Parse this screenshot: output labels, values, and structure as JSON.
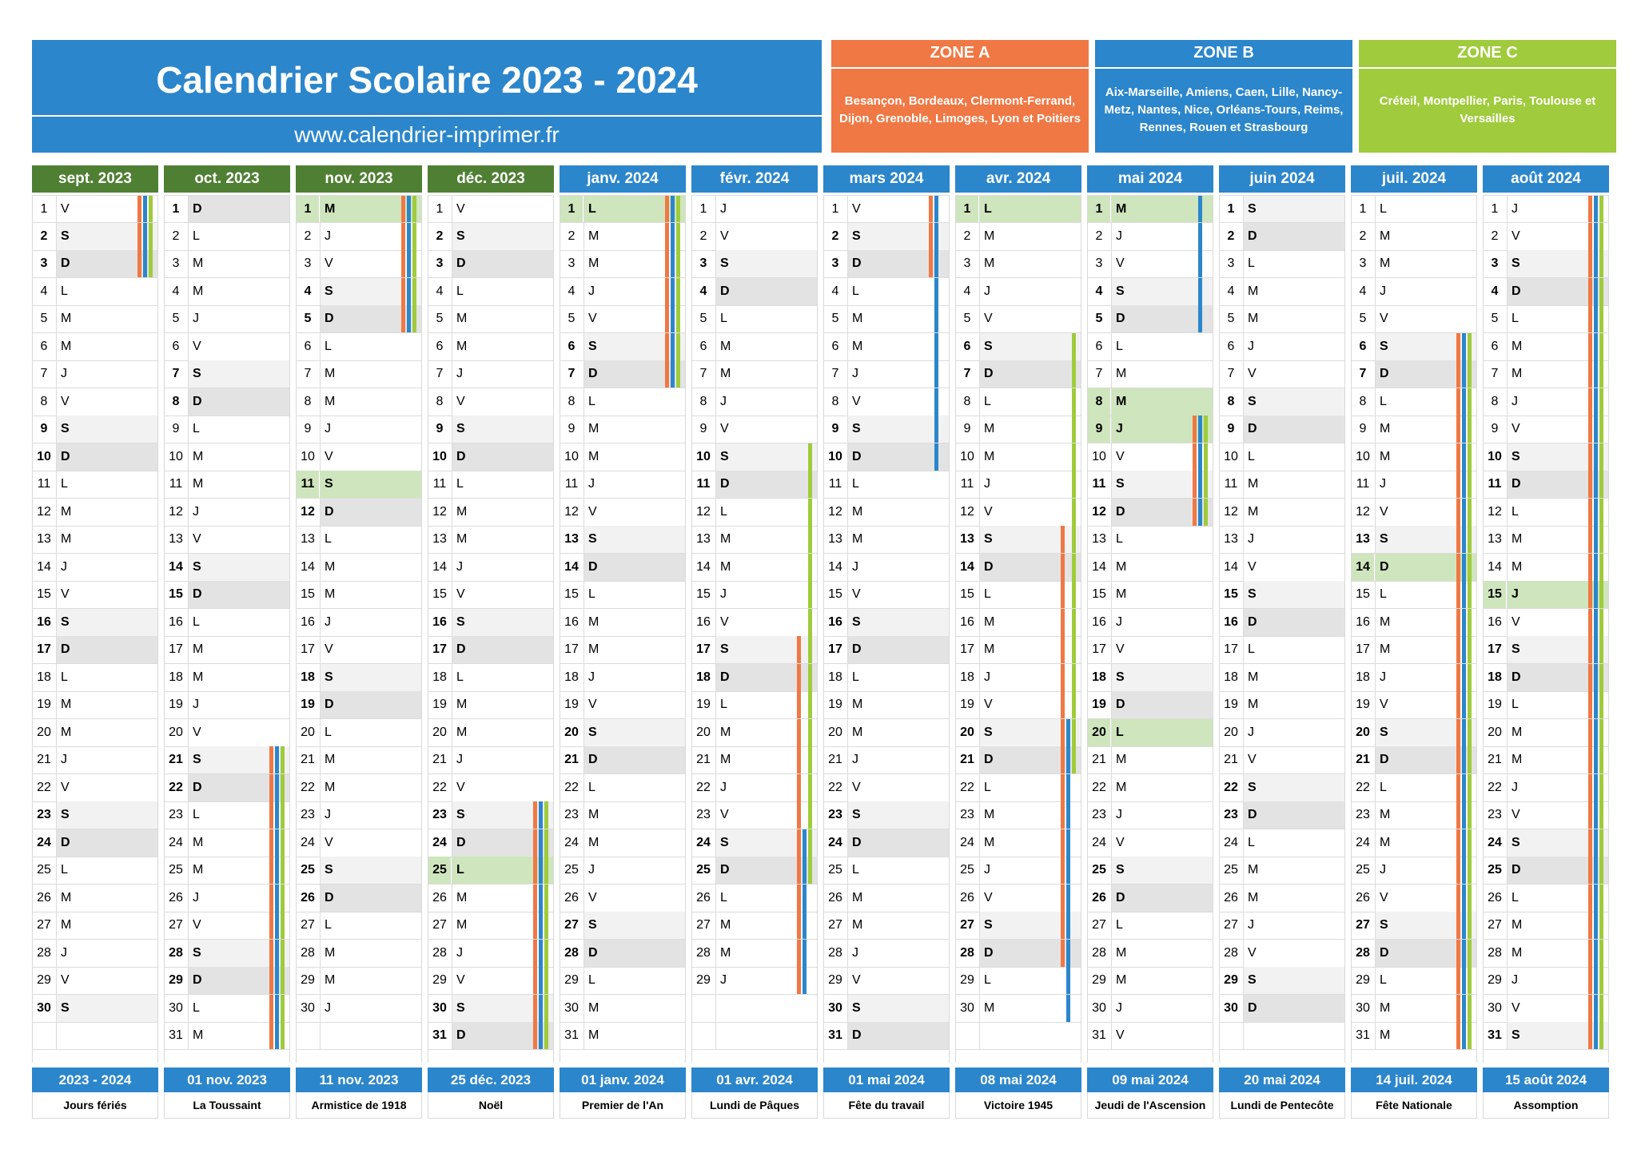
{
  "header": {
    "title": "Calendrier Scolaire 2023 - 2024",
    "website": "www.calendrier-imprimer.fr"
  },
  "colors": {
    "blue": "#2b86cc",
    "green_dark": "#4f7f33",
    "zone_a": "#f07844",
    "zone_b": "#2b86cc",
    "zone_c": "#9fcb3c",
    "holiday": "#cfe5bd"
  },
  "zones": [
    {
      "name": "ZONE A",
      "cities": "Besançon, Bordeaux, Clermont-Ferrand, Dijon, Grenoble, Limoges, Lyon et Poitiers",
      "color": "#f07844"
    },
    {
      "name": "ZONE B",
      "cities": "Aix-Marseille, Amiens, Caen, Lille, Nancy-Metz, Nantes, Nice, Orléans-Tours, Reims, Rennes, Rouen et Strasbourg",
      "color": "#2b86cc"
    },
    {
      "name": "ZONE C",
      "cities": "Créteil, Montpellier, Paris, Toulouse et Versailles",
      "color": "#9fcb3c"
    }
  ],
  "months": [
    {
      "label": "sept. 2023",
      "days": 30,
      "first_weekday": 4,
      "color": "#4f7f33",
      "holidays": [],
      "zones": {
        "A": [
          [
            1,
            3
          ]
        ],
        "B": [
          [
            1,
            3
          ]
        ],
        "C": [
          [
            1,
            3
          ]
        ]
      }
    },
    {
      "label": "oct. 2023",
      "days": 31,
      "first_weekday": 6,
      "color": "#4f7f33",
      "holidays": [],
      "zones": {
        "A": [
          [
            21,
            31
          ]
        ],
        "B": [
          [
            21,
            31
          ]
        ],
        "C": [
          [
            21,
            31
          ]
        ]
      }
    },
    {
      "label": "nov. 2023",
      "days": 30,
      "first_weekday": 2,
      "color": "#4f7f33",
      "holidays": [
        1,
        11
      ],
      "zones": {
        "A": [
          [
            1,
            5
          ]
        ],
        "B": [
          [
            1,
            5
          ]
        ],
        "C": [
          [
            1,
            5
          ]
        ]
      }
    },
    {
      "label": "déc. 2023",
      "days": 31,
      "first_weekday": 4,
      "color": "#4f7f33",
      "holidays": [
        25
      ],
      "zones": {
        "A": [
          [
            23,
            31
          ]
        ],
        "B": [
          [
            23,
            31
          ]
        ],
        "C": [
          [
            23,
            31
          ]
        ]
      }
    },
    {
      "label": "janv. 2024",
      "days": 31,
      "first_weekday": 0,
      "color": "#2b86cc",
      "holidays": [
        1
      ],
      "zones": {
        "A": [
          [
            1,
            7
          ]
        ],
        "B": [
          [
            1,
            7
          ]
        ],
        "C": [
          [
            1,
            7
          ]
        ]
      }
    },
    {
      "label": "févr. 2024",
      "days": 29,
      "first_weekday": 3,
      "color": "#2b86cc",
      "holidays": [],
      "zones": {
        "A": [
          [
            17,
            29
          ]
        ],
        "B": [
          [
            24,
            29
          ]
        ],
        "C": [
          [
            10,
            25
          ]
        ]
      }
    },
    {
      "label": "mars 2024",
      "days": 31,
      "first_weekday": 4,
      "color": "#2b86cc",
      "holidays": [],
      "zones": {
        "A": [
          [
            1,
            3
          ]
        ],
        "B": [
          [
            1,
            10
          ]
        ],
        "C": []
      }
    },
    {
      "label": "avr. 2024",
      "days": 30,
      "first_weekday": 0,
      "color": "#2b86cc",
      "holidays": [
        1
      ],
      "zones": {
        "A": [
          [
            13,
            28
          ]
        ],
        "B": [
          [
            20,
            30
          ]
        ],
        "C": [
          [
            6,
            21
          ]
        ]
      }
    },
    {
      "label": "mai 2024",
      "days": 31,
      "first_weekday": 2,
      "color": "#2b86cc",
      "holidays": [
        1,
        8,
        9,
        20
      ],
      "zones": {
        "A": [
          [
            9,
            12
          ]
        ],
        "B": [
          [
            1,
            5
          ],
          [
            9,
            12
          ]
        ],
        "C": [
          [
            9,
            12
          ]
        ]
      }
    },
    {
      "label": "juin 2024",
      "days": 30,
      "first_weekday": 5,
      "color": "#2b86cc",
      "holidays": [],
      "zones": {
        "A": [],
        "B": [],
        "C": []
      }
    },
    {
      "label": "juil. 2024",
      "days": 31,
      "first_weekday": 0,
      "color": "#2b86cc",
      "holidays": [
        14
      ],
      "zones": {
        "A": [
          [
            6,
            31
          ]
        ],
        "B": [
          [
            6,
            31
          ]
        ],
        "C": [
          [
            6,
            31
          ]
        ]
      }
    },
    {
      "label": "août 2024",
      "days": 31,
      "first_weekday": 3,
      "color": "#2b86cc",
      "holidays": [
        15
      ],
      "zones": {
        "A": [
          [
            1,
            31
          ]
        ],
        "B": [
          [
            1,
            31
          ]
        ],
        "C": [
          [
            1,
            31
          ]
        ]
      }
    }
  ],
  "weekday_letters": [
    "L",
    "M",
    "M",
    "J",
    "V",
    "S",
    "D"
  ],
  "footer": [
    {
      "date": "2023 - 2024",
      "name": "Jours fériés"
    },
    {
      "date": "01 nov. 2023",
      "name": "La Toussaint"
    },
    {
      "date": "11 nov. 2023",
      "name": "Armistice de 1918"
    },
    {
      "date": "25 déc. 2023",
      "name": "Noël"
    },
    {
      "date": "01 janv. 2024",
      "name": "Premier de l'An"
    },
    {
      "date": "01 avr. 2024",
      "name": "Lundi de Pâques"
    },
    {
      "date": "01 mai 2024",
      "name": "Fête du travail"
    },
    {
      "date": "08 mai 2024",
      "name": "Victoire 1945"
    },
    {
      "date": "09 mai 2024",
      "name": "Jeudi de l'Ascension"
    },
    {
      "date": "20 mai 2024",
      "name": "Lundi de Pentecôte"
    },
    {
      "date": "14 juil. 2024",
      "name": "Fête Nationale"
    },
    {
      "date": "15 août 2024",
      "name": "Assomption"
    }
  ]
}
